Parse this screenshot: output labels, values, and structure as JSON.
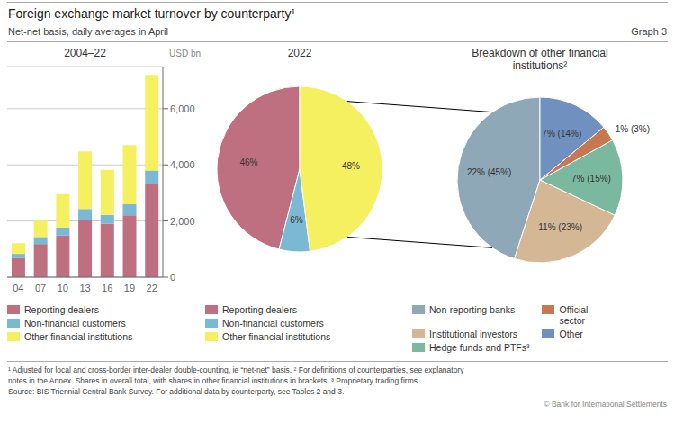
{
  "title": "Foreign exchange market turnover by counterparty¹",
  "subtitle": "Net-net basis, daily averages in April",
  "annotations": [
    "Graph 3",
    "¹ Adjusted for local and cross-border inter-dealer double-counting, ie “net-net” basis.  ² For definitions of counterparties, see explanatory",
    "notes in the Annex. Shares in overall total, with shares in other financial institutions in brackets.  ³ Proprietary trading firms.",
    "Source: BIS Triennial Central Bank Survey. For additional data by counterparty, see Tables 2 and 3.",
    "© Bank for International Settlements"
  ],
  "chart_data": [
    {
      "type": "bar",
      "title": "2004–22",
      "ylabel": "USD bn",
      "stacked": true,
      "categories": [
        "04",
        "07",
        "10",
        "13",
        "16",
        "19",
        "22"
      ],
      "series": [
        {
          "name": "Reporting dealers",
          "color": "#bf7080",
          "values": [
            680,
            1180,
            1480,
            2050,
            1900,
            2200,
            3300
          ]
        },
        {
          "name": "Non-financial customers",
          "color": "#7ab8d4",
          "values": [
            150,
            250,
            280,
            380,
            320,
            400,
            500
          ]
        },
        {
          "name": "Other financial institutions",
          "color": "#f5f060",
          "values": [
            380,
            580,
            1200,
            2050,
            1600,
            2100,
            3400
          ]
        }
      ],
      "ylim": [
        0,
        7500
      ],
      "yticks": [
        0,
        {
          "value": 2000,
          "label": "2,000"
        },
        {
          "value": 4000,
          "label": "4,000"
        },
        {
          "value": 6000,
          "label": "6,000"
        }
      ],
      "grid": true,
      "legend": "bottom"
    },
    {
      "type": "pie",
      "title": "2022",
      "categories": [
        "Reporting dealers",
        "Non-financial customers",
        "Other financial institutions"
      ],
      "values": [
        46,
        6,
        48
      ],
      "value_labels": [
        "46%",
        "6%",
        "48%"
      ],
      "colors": [
        "#bf7080",
        "#7ab8d4",
        "#f5f060"
      ],
      "data_labels": true,
      "legend": "bottom"
    },
    {
      "type": "pie",
      "title": "Breakdown of other financial\ninstitutions²",
      "categories": [
        "Non-reporting banks",
        "Institutional investors",
        "Hedge funds and PTFs³",
        "Official\nsector",
        "Other"
      ],
      "values": [
        45,
        23,
        15,
        3,
        14
      ],
      "value_labels": [
        "22% (45%)",
        "11% (23%)",
        "7% (15%)",
        "1% (3%)",
        "7% (14%)"
      ],
      "colors": [
        "#8fa8b8",
        "#d4b896",
        "#7ab8a0",
        "#c87850",
        "#7090c0"
      ],
      "data_labels": true,
      "legend": "bottom"
    }
  ]
}
